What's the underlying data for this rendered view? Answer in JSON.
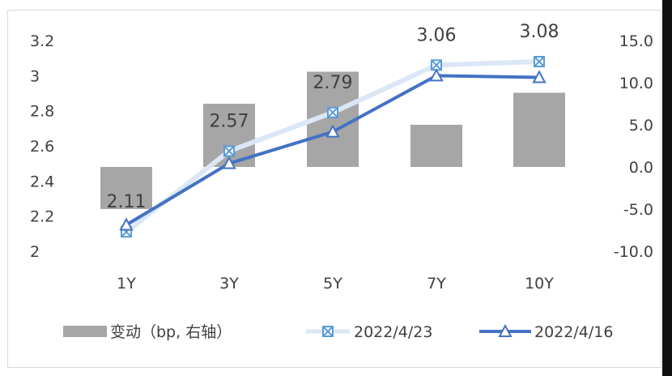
{
  "chart_data": {
    "type": "bar+line",
    "categories": [
      "1Y",
      "3Y",
      "5Y",
      "7Y",
      "10Y"
    ],
    "left_axis": {
      "ticks": [
        "2",
        "2.2",
        "2.4",
        "2.6",
        "2.8",
        "3",
        "3.2"
      ],
      "min": 2.0,
      "max": 3.2
    },
    "right_axis": {
      "ticks": [
        "-10.0",
        "-5.0",
        "0.0",
        "5.0",
        "10.0",
        "15.0"
      ],
      "min": -10.0,
      "max": 15.0
    },
    "bars": {
      "name": "变动（bp, 右轴）",
      "color": "#a6a6a6",
      "values": [
        -5.0,
        7.5,
        11.3,
        5.0,
        8.8
      ]
    },
    "series": [
      {
        "name": "2022/4/23",
        "color": "#dbe7f6",
        "marker": "x-box",
        "values": [
          2.11,
          2.57,
          2.79,
          3.06,
          3.08
        ],
        "labels": [
          "2.11",
          "2.57",
          "2.79",
          "3.06",
          "3.08"
        ]
      },
      {
        "name": "2022/4/16",
        "color": "#4472c4",
        "marker": "triangle",
        "values": [
          2.15,
          2.5,
          2.68,
          3.0,
          2.99
        ]
      }
    ]
  }
}
